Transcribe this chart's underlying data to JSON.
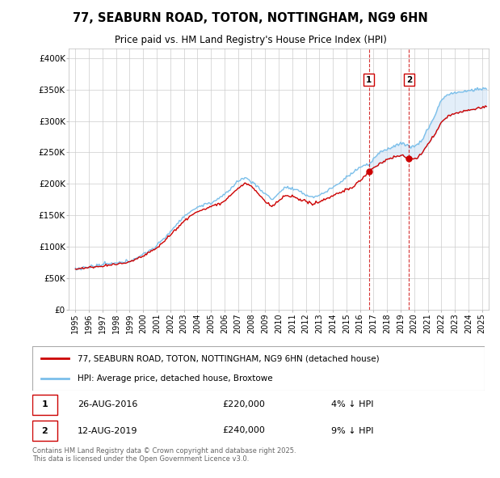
{
  "title": "77, SEABURN ROAD, TOTON, NOTTINGHAM, NG9 6HN",
  "subtitle": "Price paid vs. HM Land Registry's House Price Index (HPI)",
  "ylabel_ticks": [
    "£0",
    "£50K",
    "£100K",
    "£150K",
    "£200K",
    "£250K",
    "£300K",
    "£350K",
    "£400K"
  ],
  "ytick_values": [
    0,
    50000,
    100000,
    150000,
    200000,
    250000,
    300000,
    350000,
    400000
  ],
  "ylim": [
    0,
    415000
  ],
  "xlim_start": 1994.5,
  "xlim_end": 2025.5,
  "xtick_years": [
    1995,
    1996,
    1997,
    1998,
    1999,
    2000,
    2001,
    2002,
    2003,
    2004,
    2005,
    2006,
    2007,
    2008,
    2009,
    2010,
    2011,
    2012,
    2013,
    2014,
    2015,
    2016,
    2017,
    2018,
    2019,
    2020,
    2021,
    2022,
    2023,
    2024,
    2025
  ],
  "hpi_color": "#7bbfea",
  "price_color": "#cc0000",
  "fill_color": "#c8dff5",
  "marker1_date": 2016.65,
  "marker1_price": 220000,
  "marker1_label": "26-AUG-2016",
  "marker1_price_label": "£220,000",
  "marker1_note": "4% ↓ HPI",
  "marker2_date": 2019.62,
  "marker2_price": 240000,
  "marker2_label": "12-AUG-2019",
  "marker2_price_label": "£240,000",
  "marker2_note": "9% ↓ HPI",
  "legend_line1": "77, SEABURN ROAD, TOTON, NOTTINGHAM, NG9 6HN (detached house)",
  "legend_line2": "HPI: Average price, detached house, Broxtowe",
  "footer": "Contains HM Land Registry data © Crown copyright and database right 2025.\nThis data is licensed under the Open Government Licence v3.0.",
  "background_color": "#ffffff",
  "plot_bg_color": "#ffffff",
  "grid_color": "#cccccc"
}
